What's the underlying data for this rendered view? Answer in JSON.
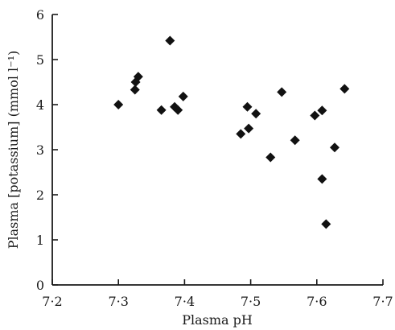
{
  "chart_data": {
    "type": "scatter",
    "title": "",
    "xlabel": "Plasma pH",
    "ylabel": "Plasma [potassium] (mmol l⁻¹)",
    "xlim": [
      7.2,
      7.7
    ],
    "ylim": [
      0,
      6
    ],
    "x_ticks": [
      7.2,
      7.3,
      7.4,
      7.5,
      7.6,
      7.7
    ],
    "x_tick_labels": [
      "7·2",
      "7·3",
      "7·4",
      "7·5",
      "7·6",
      "7·7"
    ],
    "y_ticks": [
      0,
      1,
      2,
      3,
      4,
      5,
      6
    ],
    "y_tick_labels": [
      "0",
      "1",
      "2",
      "3",
      "4",
      "5",
      "6"
    ],
    "grid": false,
    "marker": "diamond",
    "series": [
      {
        "points": [
          {
            "x": 7.3,
            "y": 4.0
          },
          {
            "x": 7.325,
            "y": 4.33
          },
          {
            "x": 7.326,
            "y": 4.5
          },
          {
            "x": 7.33,
            "y": 4.62
          },
          {
            "x": 7.365,
            "y": 3.88
          },
          {
            "x": 7.378,
            "y": 5.42
          },
          {
            "x": 7.385,
            "y": 3.95
          },
          {
            "x": 7.39,
            "y": 3.88
          },
          {
            "x": 7.398,
            "y": 4.18
          },
          {
            "x": 7.485,
            "y": 3.35
          },
          {
            "x": 7.495,
            "y": 3.95
          },
          {
            "x": 7.497,
            "y": 3.47
          },
          {
            "x": 7.508,
            "y": 3.8
          },
          {
            "x": 7.53,
            "y": 2.83
          },
          {
            "x": 7.547,
            "y": 4.28
          },
          {
            "x": 7.567,
            "y": 3.21
          },
          {
            "x": 7.597,
            "y": 3.76
          },
          {
            "x": 7.608,
            "y": 2.35
          },
          {
            "x": 7.608,
            "y": 3.87
          },
          {
            "x": 7.614,
            "y": 1.35
          },
          {
            "x": 7.627,
            "y": 3.05
          },
          {
            "x": 7.642,
            "y": 4.35
          }
        ]
      }
    ]
  }
}
